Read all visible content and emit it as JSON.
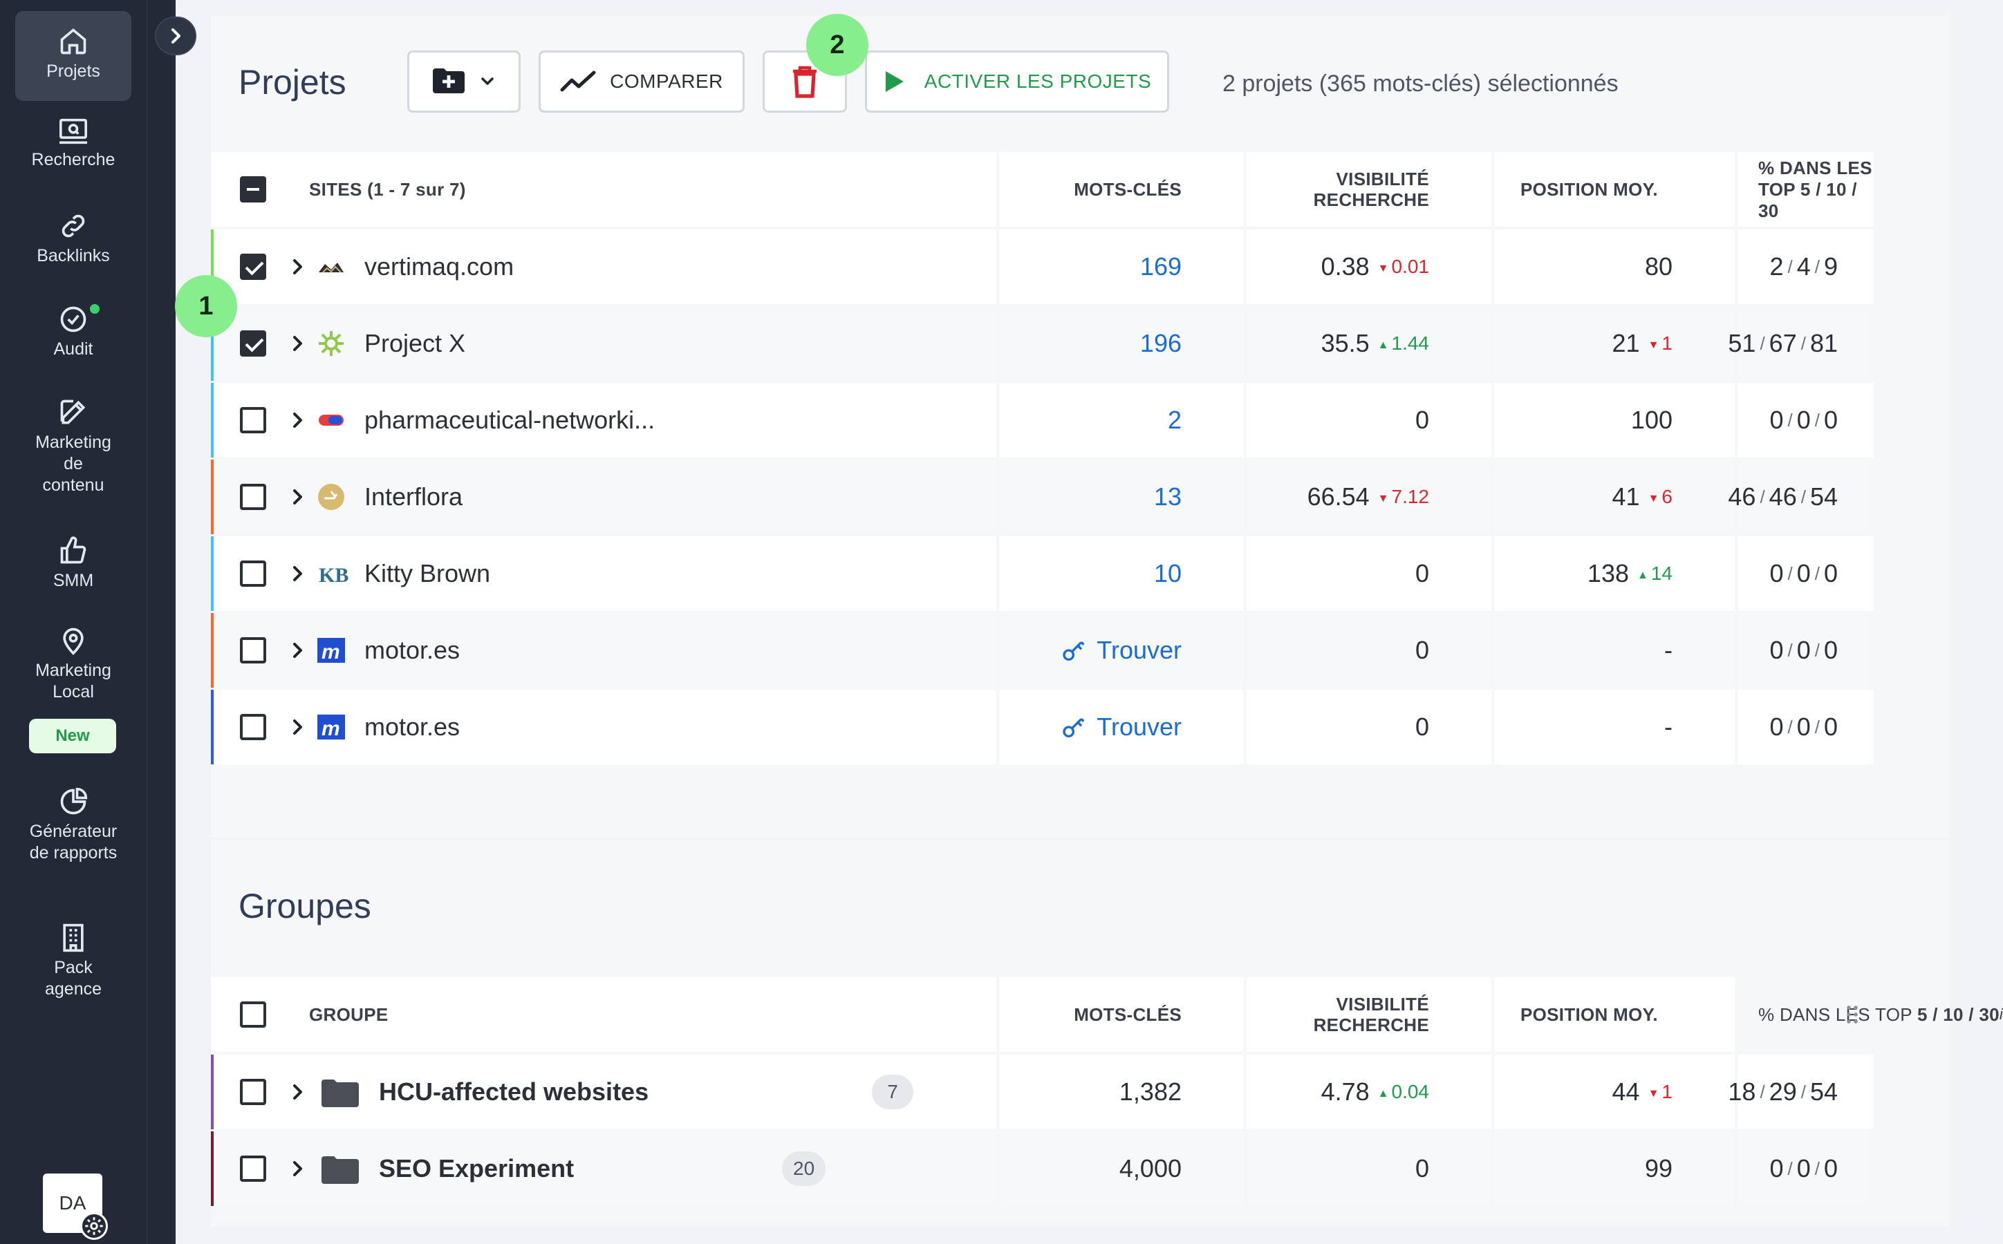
{
  "sidebar": {
    "items": [
      {
        "label": "Projets",
        "icon": "home-icon"
      },
      {
        "label": "Recherche",
        "icon": "search-screen-icon"
      },
      {
        "label": "Backlinks",
        "icon": "link-icon"
      },
      {
        "label": "Audit",
        "icon": "check-circle-icon"
      },
      {
        "label": "Marketing de contenu",
        "icon": "edit-icon"
      },
      {
        "label": "SMM",
        "icon": "thumbs-up-icon"
      },
      {
        "label": "Marketing Local",
        "icon": "map-pin-icon"
      },
      {
        "label": "Générateur de rapports",
        "icon": "pie-chart-icon"
      },
      {
        "label": "Pack agence",
        "icon": "building-icon"
      }
    ],
    "new_badge": "New",
    "avatar": "DA"
  },
  "projects": {
    "title": "Projets",
    "toolbar": {
      "compare": "COMPARER",
      "activate": "ACTIVER LES PROJETS"
    },
    "selected_info": "2 projets (365 mots-clés) sélectionnés",
    "hints": [
      "1",
      "2"
    ],
    "headers": {
      "sites": "SITES (1 - 7 sur 7)",
      "keywords": "MOTS-CLÉS",
      "visibility_1": "VISIBILITÉ",
      "visibility_2": "RECHERCHE",
      "position": "POSITION MOY.",
      "top": "% DANS LES TOP 5 / 10 / 30"
    },
    "rows": [
      {
        "name": "vertimaq.com",
        "keywords": "169",
        "visibility": "0.38",
        "vis_delta": "0.01",
        "position": "80",
        "pos_delta": "",
        "top": [
          "2",
          "4",
          "9"
        ]
      },
      {
        "name": "Project X",
        "keywords": "196",
        "visibility": "35.5",
        "vis_delta": "1.44",
        "position": "21",
        "pos_delta": "1",
        "top": [
          "51",
          "67",
          "81"
        ]
      },
      {
        "name": "pharmaceutical-networki...",
        "keywords": "2",
        "visibility": "0",
        "vis_delta": "",
        "position": "100",
        "pos_delta": "",
        "top": [
          "0",
          "0",
          "0"
        ]
      },
      {
        "name": "Interflora",
        "keywords": "13",
        "visibility": "66.54",
        "vis_delta": "7.12",
        "position": "41",
        "pos_delta": "6",
        "top": [
          "46",
          "46",
          "54"
        ]
      },
      {
        "name": "Kitty Brown",
        "keywords": "10",
        "visibility": "0",
        "vis_delta": "",
        "position": "138",
        "pos_delta": "14",
        "top": [
          "0",
          "0",
          "0"
        ]
      },
      {
        "name": "motor.es",
        "keywords": "Trouver",
        "visibility": "0",
        "vis_delta": "",
        "position": "-",
        "pos_delta": "",
        "top": [
          "0",
          "0",
          "0"
        ]
      },
      {
        "name": "motor.es",
        "keywords": "Trouver",
        "visibility": "0",
        "vis_delta": "",
        "position": "-",
        "pos_delta": "",
        "top": [
          "0",
          "0",
          "0"
        ]
      }
    ],
    "separator": "/"
  },
  "groups": {
    "title": "Groupes",
    "headers": {
      "group": "GROUPE",
      "keywords": "MOTS-CLÉS",
      "visibility_1": "VISIBILITÉ",
      "visibility_2": "RECHERCHE",
      "position": "POSITION MOY.",
      "top_prefix": "% DANS LES TOP ",
      "top_bold": "5 / 10 / 30",
      "top_info": "i"
    },
    "rows": [
      {
        "name": "HCU-affected websites",
        "count": "7",
        "keywords": "1,382",
        "visibility": "4.78",
        "vis_delta": "0.04",
        "position": "44",
        "pos_delta": "1",
        "top": [
          "18",
          "29",
          "54"
        ]
      },
      {
        "name": "SEO Experiment",
        "count": "20",
        "keywords": "4,000",
        "visibility": "0",
        "vis_delta": "",
        "position": "99",
        "pos_delta": "",
        "top": [
          "0",
          "0",
          "0"
        ]
      }
    ]
  },
  "colors": {
    "sidebar_bg": "#232936",
    "link": "#1a6bd6",
    "up": "#1f9b49",
    "down": "#d8262f",
    "hint": "#86ee8d",
    "accents": [
      "#7ed957",
      "#45c2e8",
      "#45c2e8",
      "#f26a2e",
      "#45c2e8",
      "#f26a2e",
      "#2f5fe0"
    ],
    "group_accents": [
      "#8e4aa8",
      "#7a1f2a"
    ]
  }
}
